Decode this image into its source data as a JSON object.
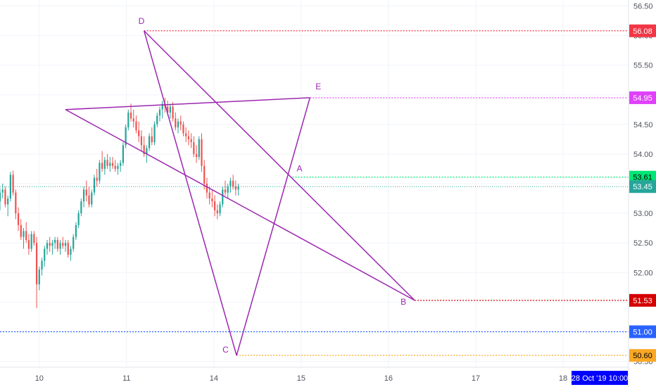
{
  "chart_data": {
    "type": "candlestick",
    "title": "",
    "xlabel": "",
    "ylabel": "",
    "ylim": [
      50.4,
      56.6
    ],
    "y_ticks": [
      "56.50",
      "56.00",
      "55.50",
      "55.00",
      "54.50",
      "54.00",
      "53.50",
      "53.00",
      "52.50",
      "52.00",
      "51.50",
      "51.00",
      "50.50"
    ],
    "x_ticks": [
      "10",
      "11",
      "14",
      "15",
      "16",
      "17",
      "18"
    ],
    "x_tick_pos": [
      0,
      1,
      2,
      3,
      4,
      5,
      6
    ],
    "xlim": [
      -0.45,
      6.75
    ],
    "grid": true,
    "current_price": 53.45,
    "crosshair_time": "28 Oct '19  10:00",
    "colors": {
      "up": "#26a69a",
      "down": "#ef5350",
      "pattern": "#9c27b0"
    },
    "levels": [
      {
        "value": 56.08,
        "label": "56.08",
        "color": "#f23645",
        "x_start": 1.2
      },
      {
        "value": 54.95,
        "label": "54.95",
        "color": "#e040fb",
        "x_start": 3.1
      },
      {
        "value": 53.61,
        "label": "53.61",
        "color": "#00e676",
        "x_start": 2.9
      },
      {
        "value": 51.53,
        "label": "51.53",
        "color": "#d50000",
        "x_start": 4.3
      },
      {
        "value": 51.0,
        "label": "51.00",
        "color": "#2962ff",
        "x_start": -0.45
      },
      {
        "value": 50.6,
        "label": "50.60",
        "color": "#f9a825",
        "x_start": 2.26
      }
    ],
    "points": [
      {
        "name": "D",
        "x": 1.2,
        "y": 56.08,
        "dx": -8,
        "dy": -10
      },
      {
        "name": "E",
        "x": 3.1,
        "y": 54.95,
        "dx": 8,
        "dy": -12
      },
      {
        "name": "A",
        "x": 2.9,
        "y": 53.61,
        "dx": 6,
        "dy": -8
      },
      {
        "name": "B",
        "x": 4.3,
        "y": 51.53,
        "dx": -20,
        "dy": 6
      },
      {
        "name": "C",
        "x": 2.26,
        "y": 50.6,
        "dx": -20,
        "dy": -4
      }
    ],
    "pattern_lines": [
      {
        "from": [
          1.2,
          56.08
        ],
        "to": [
          2.26,
          50.6
        ]
      },
      {
        "from": [
          2.26,
          50.6
        ],
        "to": [
          3.1,
          54.95
        ]
      },
      {
        "from": [
          3.1,
          54.95
        ],
        "to": [
          0.3,
          54.75
        ]
      },
      {
        "from": [
          0.3,
          54.75
        ],
        "to": [
          4.3,
          51.53
        ]
      },
      {
        "from": [
          4.3,
          51.53
        ],
        "to": [
          1.2,
          56.08
        ]
      }
    ],
    "series": [
      {
        "values": [
          [
            -0.45,
            53.2,
            53.42,
            53.05,
            53.35
          ],
          [
            -0.42,
            53.35,
            53.5,
            53.25,
            53.4
          ],
          [
            -0.39,
            53.4,
            53.45,
            53.1,
            53.15
          ],
          [
            -0.36,
            53.15,
            53.3,
            52.95,
            53.25
          ],
          [
            -0.33,
            53.25,
            53.7,
            53.2,
            53.65
          ],
          [
            -0.3,
            53.65,
            53.72,
            53.3,
            53.35
          ],
          [
            -0.27,
            53.35,
            53.4,
            52.9,
            53.0
          ],
          [
            -0.24,
            53.0,
            53.1,
            52.7,
            52.8
          ],
          [
            -0.21,
            52.8,
            52.9,
            52.55,
            52.6
          ],
          [
            -0.18,
            52.6,
            52.75,
            52.4,
            52.7
          ],
          [
            -0.15,
            52.7,
            52.85,
            52.5,
            52.55
          ],
          [
            -0.12,
            52.55,
            52.65,
            52.3,
            52.4
          ],
          [
            -0.09,
            52.4,
            52.7,
            52.35,
            52.65
          ],
          [
            -0.06,
            52.65,
            52.7,
            52.45,
            52.5
          ],
          [
            -0.03,
            52.5,
            52.6,
            51.4,
            51.8
          ],
          [
            0.0,
            51.8,
            52.1,
            51.7,
            52.05
          ],
          [
            0.03,
            52.05,
            52.25,
            51.95,
            52.2
          ],
          [
            0.06,
            52.2,
            52.45,
            52.1,
            52.4
          ],
          [
            0.09,
            52.4,
            52.55,
            52.3,
            52.5
          ],
          [
            0.12,
            52.5,
            52.6,
            52.35,
            52.45
          ],
          [
            0.15,
            52.45,
            52.55,
            52.3,
            52.5
          ],
          [
            0.18,
            52.5,
            52.6,
            52.4,
            52.55
          ],
          [
            0.21,
            52.55,
            52.6,
            52.35,
            52.4
          ],
          [
            0.24,
            52.4,
            52.55,
            52.3,
            52.5
          ],
          [
            0.27,
            52.5,
            52.6,
            52.4,
            52.45
          ],
          [
            0.3,
            52.45,
            52.55,
            52.35,
            52.5
          ],
          [
            0.33,
            52.5,
            52.55,
            52.25,
            52.3
          ],
          [
            0.36,
            52.3,
            52.45,
            52.2,
            52.4
          ],
          [
            0.39,
            52.4,
            52.65,
            52.35,
            52.6
          ],
          [
            0.42,
            52.6,
            52.85,
            52.55,
            52.8
          ],
          [
            0.45,
            52.8,
            53.05,
            52.75,
            53.0
          ],
          [
            0.48,
            53.0,
            53.25,
            52.95,
            53.2
          ],
          [
            0.51,
            53.2,
            53.45,
            53.1,
            53.4
          ],
          [
            0.54,
            53.4,
            53.55,
            53.2,
            53.3
          ],
          [
            0.57,
            53.3,
            53.45,
            53.1,
            53.15
          ],
          [
            0.6,
            53.15,
            53.4,
            53.1,
            53.35
          ],
          [
            0.63,
            53.35,
            53.65,
            53.3,
            53.6
          ],
          [
            0.66,
            53.6,
            53.75,
            53.45,
            53.55
          ],
          [
            0.69,
            53.55,
            53.9,
            53.5,
            53.85
          ],
          [
            0.72,
            53.85,
            54.05,
            53.7,
            53.75
          ],
          [
            0.75,
            53.75,
            53.95,
            53.65,
            53.9
          ],
          [
            0.78,
            53.9,
            54.0,
            53.75,
            53.8
          ],
          [
            0.81,
            53.8,
            53.95,
            53.7,
            53.85
          ],
          [
            0.84,
            53.85,
            53.95,
            53.75,
            53.8
          ],
          [
            0.87,
            53.8,
            53.9,
            53.7,
            53.75
          ],
          [
            0.9,
            53.75,
            53.85,
            53.65,
            53.8
          ],
          [
            0.93,
            53.8,
            53.9,
            53.7,
            53.85
          ],
          [
            0.96,
            53.85,
            54.2,
            53.8,
            54.15
          ],
          [
            0.99,
            54.15,
            54.5,
            54.1,
            54.45
          ],
          [
            1.02,
            54.45,
            54.75,
            54.4,
            54.7
          ],
          [
            1.05,
            54.7,
            54.85,
            54.55,
            54.6
          ],
          [
            1.08,
            54.6,
            54.75,
            54.45,
            54.55
          ],
          [
            1.11,
            54.55,
            54.65,
            54.35,
            54.4
          ],
          [
            1.14,
            54.4,
            54.55,
            54.2,
            54.3
          ],
          [
            1.17,
            54.3,
            54.4,
            54.05,
            54.15
          ],
          [
            1.2,
            54.15,
            54.3,
            53.95,
            54.0
          ],
          [
            1.23,
            54.0,
            54.15,
            53.85,
            54.1
          ],
          [
            1.26,
            54.1,
            54.35,
            54.05,
            54.3
          ],
          [
            1.29,
            54.3,
            54.45,
            54.15,
            54.2
          ],
          [
            1.32,
            54.2,
            54.55,
            54.15,
            54.5
          ],
          [
            1.35,
            54.5,
            54.7,
            54.45,
            54.65
          ],
          [
            1.38,
            54.65,
            54.8,
            54.55,
            54.75
          ],
          [
            1.41,
            54.75,
            54.9,
            54.6,
            54.85
          ],
          [
            1.44,
            54.85,
            54.95,
            54.7,
            54.8
          ],
          [
            1.47,
            54.8,
            54.9,
            54.65,
            54.7
          ],
          [
            1.5,
            54.7,
            54.85,
            54.6,
            54.8
          ],
          [
            1.53,
            54.8,
            54.88,
            54.55,
            54.6
          ],
          [
            1.56,
            54.6,
            54.7,
            54.4,
            54.45
          ],
          [
            1.59,
            54.45,
            54.6,
            54.35,
            54.55
          ],
          [
            1.62,
            54.55,
            54.65,
            54.4,
            54.5
          ],
          [
            1.65,
            54.5,
            54.55,
            54.3,
            54.35
          ],
          [
            1.68,
            54.35,
            54.45,
            54.2,
            54.3
          ],
          [
            1.71,
            54.3,
            54.4,
            54.15,
            54.25
          ],
          [
            1.74,
            54.25,
            54.35,
            54.1,
            54.2
          ],
          [
            1.77,
            54.2,
            54.3,
            53.95,
            54.0
          ],
          [
            1.8,
            54.0,
            54.15,
            53.85,
            53.95
          ],
          [
            1.83,
            53.95,
            54.3,
            53.9,
            54.25
          ],
          [
            1.86,
            54.25,
            54.35,
            53.7,
            53.8
          ],
          [
            1.89,
            53.8,
            53.9,
            53.4,
            53.5
          ],
          [
            1.92,
            53.5,
            53.6,
            53.25,
            53.35
          ],
          [
            1.95,
            53.35,
            53.45,
            53.15,
            53.25
          ],
          [
            1.98,
            53.25,
            53.4,
            53.1,
            53.2
          ],
          [
            2.01,
            53.2,
            53.3,
            52.95,
            53.05
          ],
          [
            2.04,
            53.05,
            53.15,
            52.9,
            53.0
          ],
          [
            2.07,
            53.0,
            53.2,
            52.95,
            53.15
          ],
          [
            2.1,
            53.15,
            53.45,
            53.1,
            53.4
          ],
          [
            2.13,
            53.4,
            53.55,
            53.3,
            53.35
          ],
          [
            2.16,
            53.35,
            53.5,
            53.25,
            53.45
          ],
          [
            2.19,
            53.45,
            53.6,
            53.35,
            53.55
          ],
          [
            2.22,
            53.55,
            53.65,
            53.4,
            53.45
          ],
          [
            2.25,
            53.45,
            53.55,
            53.3,
            53.4
          ],
          [
            2.28,
            53.4,
            53.5,
            53.3,
            53.45
          ]
        ]
      }
    ]
  }
}
